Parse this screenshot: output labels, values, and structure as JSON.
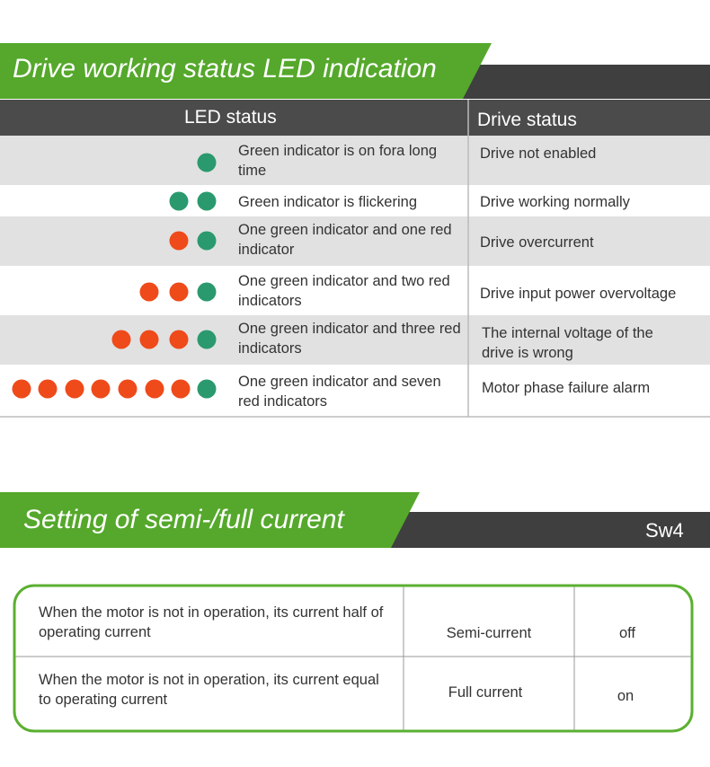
{
  "led_section": {
    "title": "Drive working status LED indication",
    "table": {
      "header": [
        "LED status",
        "Drive status"
      ],
      "rows": [
        [
          "Green indicator is on fora long time",
          "Drive not enabled"
        ],
        [
          "Green indicator is flickering",
          "Drive working normally"
        ],
        [
          "One green indicator and one red indicator",
          "Drive overcurrent"
        ],
        [
          "One green indicator and two red indicators",
          "Drive input power overvoltage"
        ],
        [
          "One green indicator and three red indicators",
          "The internal voltage of the drive is wrong"
        ],
        [
          "One green indicator and seven red indicators",
          "Motor phase failure alarm"
        ]
      ]
    }
  },
  "current_section": {
    "title": "Setting of semi-/full current",
    "switch_label": "Sw4",
    "table": {
      "rows": [
        [
          "When the motor is not in operation, its current half of operating current",
          "Semi-current",
          "off"
        ],
        [
          "When the motor is not in operation, its current equal to operating current",
          "Full current",
          "on"
        ]
      ]
    }
  }
}
